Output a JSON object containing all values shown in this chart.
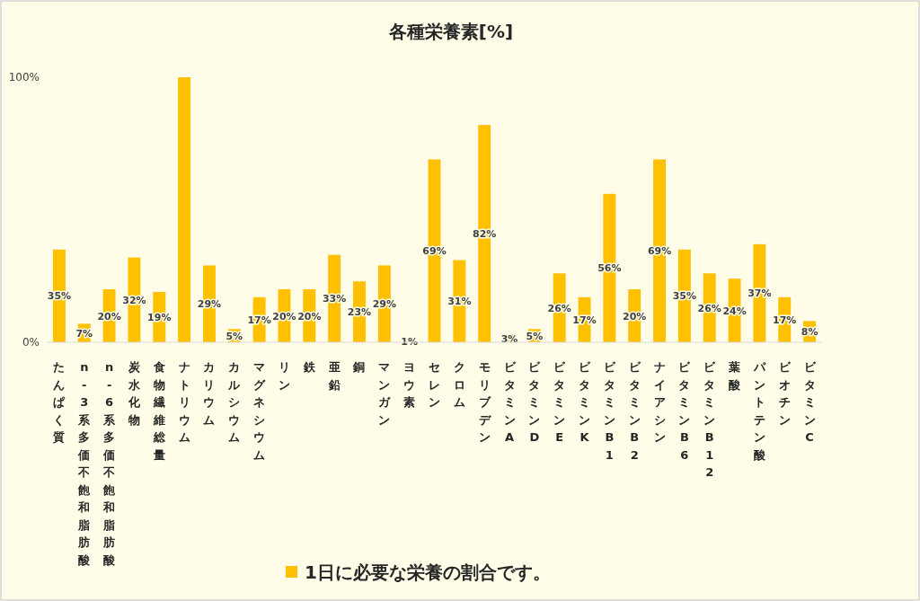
{
  "chart_data": {
    "type": "bar",
    "title": "各種栄養素[%]",
    "categories": [
      "たんぱく質",
      "n-3系多価不飽和脂肪酸",
      "n-6系多価不飽和脂肪酸",
      "炭水化物",
      "食物繊維総量",
      "ナトリウム",
      "カリウム",
      "カルシウム",
      "マグネシウム",
      "リン",
      "鉄",
      "亜鉛",
      "銅",
      "マンガン",
      "ヨウ素",
      "セレン",
      "クロム",
      "モリブデン",
      "ビタミンA",
      "ビタミンD",
      "ビタミンE",
      "ビタミンK",
      "ビタミンB1",
      "ビタミンB2",
      "ナイアシン",
      "ビタミンB6",
      "ビタミンB12",
      "葉酸",
      "パントテン酸",
      "ビオチン",
      "ビタミンC"
    ],
    "series": [
      {
        "name": "1日に必要な栄養の割合です。",
        "color": "#ffc000",
        "values": [
          35,
          7,
          20,
          32,
          19,
          100,
          29,
          5,
          17,
          20,
          20,
          33,
          23,
          29,
          1,
          69,
          31,
          82,
          3,
          5,
          26,
          17,
          56,
          20,
          69,
          35,
          26,
          24,
          37,
          17,
          8
        ],
        "value_labels": [
          "35%",
          "7%",
          "20%",
          "32%",
          "19%",
          null,
          "29%",
          "5%",
          "17%",
          "20%",
          "20%",
          "33%",
          "23%",
          "29%",
          "1%",
          "69%",
          "31%",
          "82%",
          "3%",
          "5%",
          "26%",
          "17%",
          "56%",
          "20%",
          "69%",
          "35%",
          "26%",
          "24%",
          "37%",
          "17%",
          "8%"
        ]
      }
    ],
    "ylim": [
      0,
      100
    ],
    "yticks": [
      {
        "value": 0,
        "label": "0%"
      },
      {
        "value": 100,
        "label": "100%"
      }
    ],
    "legend": "bottom"
  }
}
